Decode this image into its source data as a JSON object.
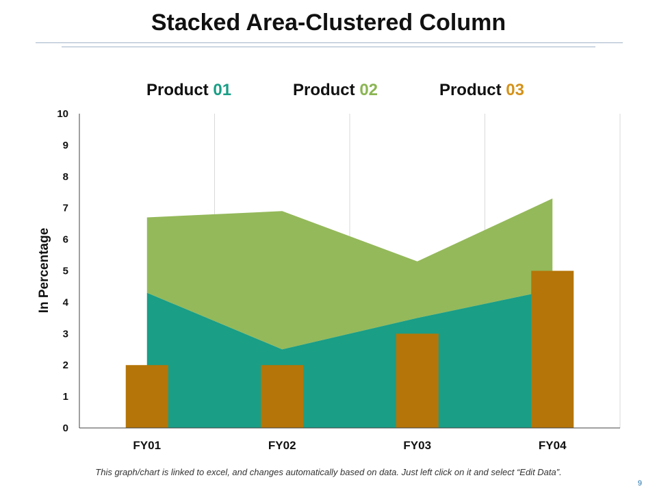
{
  "slide": {
    "title": "Stacked Area-Clustered Column",
    "footer": "This graph/chart is linked to excel, and changes automatically based on data. Just left click on it and select “Edit Data”.",
    "page_number": "9"
  },
  "legend": [
    {
      "prefix": "Product ",
      "number": "01",
      "color": "#1a9e86"
    },
    {
      "prefix": "Product ",
      "number": "02",
      "color": "#8ab553"
    },
    {
      "prefix": "Product ",
      "number": "03",
      "color": "#d4921a"
    }
  ],
  "chart_data": {
    "type": "area+bar",
    "title": "Stacked Area-Clustered Column",
    "ylabel": "In Percentage",
    "xlabel": "",
    "ylim": [
      0,
      10
    ],
    "yticks": [
      0,
      1,
      2,
      3,
      4,
      5,
      6,
      7,
      8,
      9,
      10
    ],
    "categories": [
      "FY01",
      "FY02",
      "FY03",
      "FY04"
    ],
    "series": [
      {
        "name": "Product 01",
        "kind": "stacked-area",
        "values": [
          4.3,
          2.5,
          3.5,
          4.4
        ],
        "color": "#1a9e86"
      },
      {
        "name": "Product 02",
        "kind": "stacked-area",
        "values": [
          2.4,
          4.4,
          1.8,
          2.9
        ],
        "color": "#94b95a"
      },
      {
        "name": "Product 03",
        "kind": "column",
        "values": [
          2,
          2,
          3,
          5
        ],
        "color": "#b57508"
      }
    ]
  }
}
